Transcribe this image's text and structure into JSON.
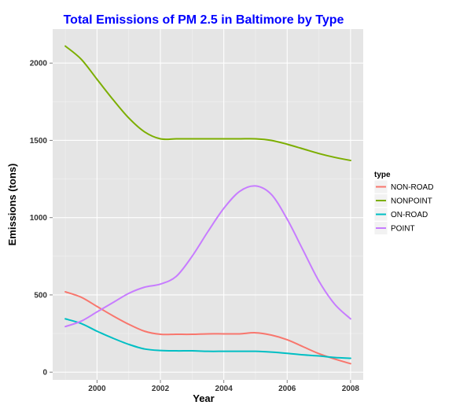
{
  "chart_data": {
    "type": "line",
    "title": "Total Emissions of PM 2.5 in Baltimore by Type",
    "xlabel": "Year",
    "ylabel": "Emissions (tons)",
    "xlim": [
      1998.6,
      2008.4
    ],
    "ylim": [
      -50,
      2220
    ],
    "x_ticks": [
      2000,
      2002,
      2004,
      2006,
      2008
    ],
    "y_ticks": [
      0,
      500,
      1000,
      1500,
      2000
    ],
    "grid": true,
    "legend": {
      "title": "type",
      "position": "right"
    },
    "series": [
      {
        "name": "NON-ROAD",
        "color": "#F8766D",
        "x": [
          1999,
          1999.5,
          2000,
          2000.5,
          2001,
          2001.5,
          2002,
          2002.5,
          2003,
          2003.5,
          2004,
          2004.5,
          2005,
          2005.5,
          2006,
          2006.5,
          2007,
          2007.5,
          2008
        ],
        "y": [
          520,
          485,
          425,
          365,
          310,
          265,
          245,
          245,
          245,
          248,
          248,
          248,
          255,
          240,
          210,
          165,
          120,
          85,
          55
        ]
      },
      {
        "name": "NONPOINT",
        "color": "#7CAE00",
        "x": [
          1999,
          1999.5,
          2000,
          2000.5,
          2001,
          2001.5,
          2002,
          2002.5,
          2003,
          2003.5,
          2004,
          2004.5,
          2005,
          2005.5,
          2006,
          2006.5,
          2007,
          2007.5,
          2008
        ],
        "y": [
          2110,
          2025,
          1895,
          1765,
          1645,
          1555,
          1510,
          1510,
          1510,
          1510,
          1510,
          1510,
          1510,
          1500,
          1475,
          1445,
          1415,
          1390,
          1370
        ]
      },
      {
        "name": "ON-ROAD",
        "color": "#00BFC4",
        "x": [
          1999,
          1999.5,
          2000,
          2000.5,
          2001,
          2001.5,
          2002,
          2002.5,
          2003,
          2003.5,
          2004,
          2004.5,
          2005,
          2005.5,
          2006,
          2006.5,
          2007,
          2007.5,
          2008
        ],
        "y": [
          345,
          315,
          265,
          220,
          180,
          150,
          140,
          138,
          138,
          135,
          135,
          135,
          135,
          130,
          122,
          112,
          105,
          95,
          90
        ]
      },
      {
        "name": "POINT",
        "color": "#C77CFF",
        "x": [
          1999,
          1999.5,
          2000,
          2000.5,
          2001,
          2001.5,
          2002,
          2002.5,
          2003,
          2003.5,
          2004,
          2004.5,
          2005,
          2005.5,
          2006,
          2006.5,
          2007,
          2007.5,
          2008
        ],
        "y": [
          295,
          330,
          390,
          450,
          510,
          550,
          570,
          620,
          750,
          910,
          1060,
          1170,
          1205,
          1150,
          990,
          790,
          590,
          440,
          345
        ]
      }
    ]
  }
}
